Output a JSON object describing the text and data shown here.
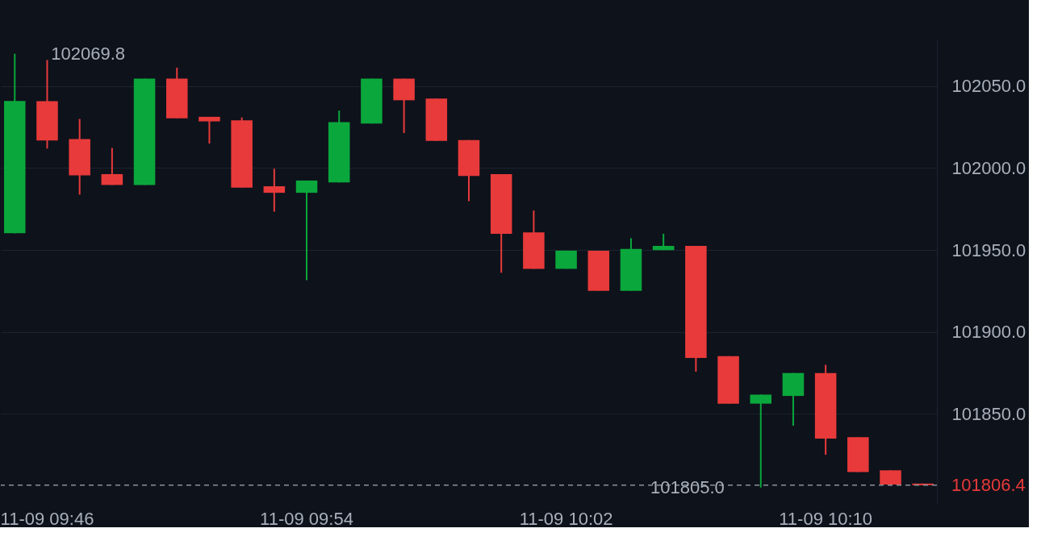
{
  "chart_data": {
    "type": "candlestick",
    "categories": [
      null,
      "11-09 09:46",
      null,
      null,
      null,
      null,
      null,
      null,
      null,
      "11-09 09:54",
      null,
      null,
      null,
      null,
      null,
      null,
      null,
      "11-09 10:02",
      null,
      null,
      null,
      null,
      null,
      null,
      null,
      "11-09 10:10",
      null,
      null,
      null
    ],
    "ohlc": [
      [
        101960.2,
        102069.8,
        101960.2,
        102041.0
      ],
      [
        102040.8,
        102066.0,
        102011.9,
        102016.9
      ],
      [
        102017.7,
        102030.0,
        101983.8,
        101995.5
      ],
      [
        101996.3,
        102012.3,
        101989.7,
        101989.7
      ],
      [
        101989.7,
        102054.6,
        101989.7,
        102054.6
      ],
      [
        102054.6,
        102061.3,
        102030.4,
        102030.4
      ],
      [
        102031.3,
        102031.3,
        102015.0,
        102028.5
      ],
      [
        102029.2,
        102030.9,
        101988.1,
        101988.1
      ],
      [
        101988.9,
        101999.6,
        101973.4,
        101984.9
      ],
      [
        101984.9,
        101992.4,
        101931.6,
        101992.4
      ],
      [
        101991.2,
        102035.1,
        101991.2,
        102028.0
      ],
      [
        102027.2,
        102054.6,
        102027.2,
        102054.6
      ],
      [
        102054.6,
        102054.6,
        102021.4,
        102041.4
      ],
      [
        102042.4,
        102042.4,
        102016.6,
        102016.6
      ],
      [
        102017.1,
        102017.1,
        101979.8,
        101995.2
      ],
      [
        101996.3,
        101996.3,
        101936.1,
        101959.9
      ],
      [
        101960.7,
        101974.1,
        101938.5,
        101938.5
      ],
      [
        101938.5,
        101949.6,
        101938.5,
        101949.6
      ],
      [
        101949.6,
        101949.6,
        101925.1,
        101925.1
      ],
      [
        101925.1,
        101957.2,
        101925.1,
        101950.7
      ],
      [
        101949.9,
        101959.9,
        101949.9,
        101952.5
      ],
      [
        101952.5,
        101952.5,
        101875.7,
        101884.1
      ],
      [
        101885.2,
        101885.2,
        101856.2,
        101856.2
      ],
      [
        101856.2,
        101861.7,
        101805.0,
        101861.7
      ],
      [
        101860.9,
        101874.9,
        101842.7,
        101874.9
      ],
      [
        101874.9,
        101879.9,
        101825.0,
        101834.9
      ],
      [
        101835.7,
        101835.7,
        101814.4,
        101814.4
      ],
      [
        101815.5,
        101815.5,
        101806.0,
        101806.8
      ],
      [
        101807.4,
        101807.4,
        101806.4,
        101806.4
      ]
    ],
    "colors": [
      "#0aa83c",
      "#e83a3a",
      "#e83a3a",
      "#e83a3a",
      "#0aa83c",
      "#e83a3a",
      "#e83a3a",
      "#e83a3a",
      "#e83a3a",
      "#0aa83c",
      "#0aa83c",
      "#0aa83c",
      "#e83a3a",
      "#e83a3a",
      "#e83a3a",
      "#e83a3a",
      "#e83a3a",
      "#0aa83c",
      "#e83a3a",
      "#0aa83c",
      "#0aa83c",
      "#e83a3a",
      "#e83a3a",
      "#0aa83c",
      "#0aa83c",
      "#e83a3a",
      "#e83a3a",
      "#e83a3a",
      "#e83a3a"
    ],
    "ylim": [
      101795,
      102078
    ],
    "yticks": [
      {
        "value": 101850,
        "label": "101850.0"
      },
      {
        "value": 101900,
        "label": "101900.0"
      },
      {
        "value": 101950,
        "label": "101950.0"
      },
      {
        "value": 102000,
        "label": "102000.0"
      },
      {
        "value": 102050,
        "label": "102050.0"
      }
    ],
    "grid": "y",
    "ref_lines": [
      {
        "axis": "y",
        "value": 101806.4,
        "label": "101806.4",
        "color": "#8a909a",
        "line_style": "dashed"
      }
    ],
    "annotations": [
      "102069.8",
      "101805.0"
    ]
  }
}
